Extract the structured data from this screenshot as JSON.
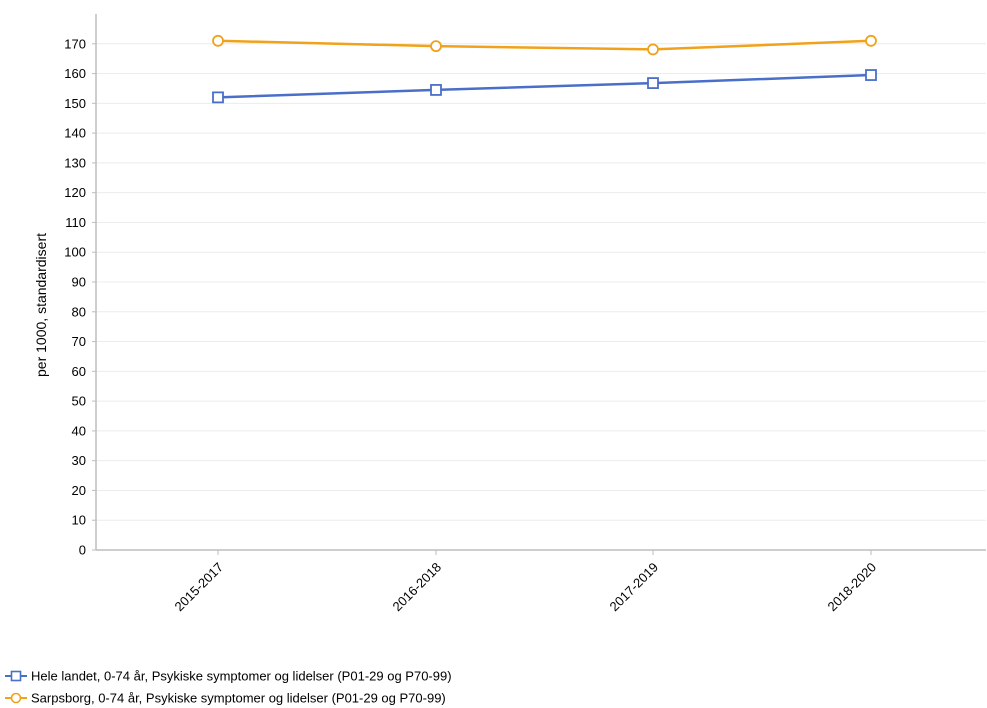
{
  "chart_data": {
    "type": "line",
    "title": "",
    "xlabel": "",
    "ylabel": "per 1000, standardisert",
    "categories": [
      "2015-2017",
      "2016-2018",
      "2017-2019",
      "2018-2020"
    ],
    "ylim": [
      0,
      180
    ],
    "yticks": [
      0,
      10,
      20,
      30,
      40,
      50,
      60,
      70,
      80,
      90,
      100,
      110,
      120,
      130,
      140,
      150,
      160,
      170
    ],
    "grid": true,
    "legend": "bottom-left",
    "series": [
      {
        "name": "Hele landet, 0-74 år, Psykiske symptomer og lidelser (P01-29 og P70-99)",
        "color": "#4a6fc9",
        "marker": "square",
        "values": [
          152,
          154.5,
          156.8,
          159.5
        ]
      },
      {
        "name": "Sarpsborg, 0-74 år, Psykiske symptomer og lidelser (P01-29 og P70-99)",
        "color": "#f0a21b",
        "marker": "circle",
        "values": [
          171,
          169.2,
          168.1,
          171
        ]
      }
    ]
  }
}
